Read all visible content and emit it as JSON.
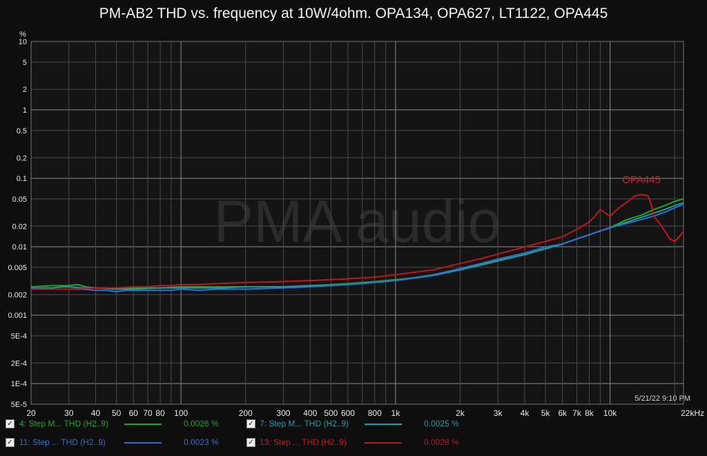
{
  "title": "PM-AB2 THD vs. frequency at 10W/4ohm. OPA134, OPA627, LT1122, OPA445",
  "timestamp": "5/21/22 9:10 PM",
  "watermark": "PMA audio",
  "colors": {
    "background": "#0e0e0e",
    "plot_bg": "#141414",
    "grid": "#4a4a4a",
    "grid_decade": "#8a8a8a",
    "text": "#e8e8e8"
  },
  "legend": [
    {
      "check": "✓",
      "label": "4: Step M... THD (H2..9)",
      "value": "0.0026 %",
      "color": "#1fa51f"
    },
    {
      "check": "✓",
      "label": "7: Step M... THD (H2..9)",
      "value": "0.0025 %",
      "color": "#1a9ea0"
    },
    {
      "check": "✓",
      "label": "11: Step ... THD (H2..9)",
      "value": "0.0023 %",
      "color": "#2f6fd6"
    },
    {
      "check": "✓",
      "label": "13: Step ... THD (H2..9)",
      "value": "0.0028 %",
      "color": "#c41616"
    }
  ],
  "chart_data": {
    "type": "line",
    "title": "PM-AB2 THD vs. frequency at 10W/4ohm. OPA134, OPA627, LT1122, OPA445",
    "xlabel": "",
    "ylabel": "%",
    "x_scale": "log",
    "y_scale": "log",
    "xlim": [
      20,
      22000
    ],
    "ylim": [
      5e-05,
      10
    ],
    "grid": true,
    "x_ticks": [
      {
        "v": 20,
        "l": "20"
      },
      {
        "v": 30,
        "l": "30"
      },
      {
        "v": 40,
        "l": "40"
      },
      {
        "v": 50,
        "l": "50"
      },
      {
        "v": 60,
        "l": "60"
      },
      {
        "v": 70,
        "l": "70"
      },
      {
        "v": 80,
        "l": "80"
      },
      {
        "v": 100,
        "l": "100"
      },
      {
        "v": 200,
        "l": "200"
      },
      {
        "v": 300,
        "l": "300"
      },
      {
        "v": 400,
        "l": "400"
      },
      {
        "v": 500,
        "l": "500"
      },
      {
        "v": 600,
        "l": "600"
      },
      {
        "v": 800,
        "l": "800"
      },
      {
        "v": 1000,
        "l": "1k"
      },
      {
        "v": 2000,
        "l": "2k"
      },
      {
        "v": 3000,
        "l": "3k"
      },
      {
        "v": 4000,
        "l": "4k"
      },
      {
        "v": 5000,
        "l": "5k"
      },
      {
        "v": 6000,
        "l": "6k"
      },
      {
        "v": 7000,
        "l": "7k"
      },
      {
        "v": 8000,
        "l": "8k"
      },
      {
        "v": 10000,
        "l": "10k"
      },
      {
        "v": 22000,
        "l": "22kHz"
      }
    ],
    "y_ticks": [
      {
        "v": 10,
        "l": "10"
      },
      {
        "v": 5,
        "l": "5"
      },
      {
        "v": 2,
        "l": "2"
      },
      {
        "v": 1,
        "l": "1"
      },
      {
        "v": 0.5,
        "l": "0.5"
      },
      {
        "v": 0.2,
        "l": "0.2"
      },
      {
        "v": 0.1,
        "l": "0.1"
      },
      {
        "v": 0.05,
        "l": "0.05"
      },
      {
        "v": 0.02,
        "l": "0.02"
      },
      {
        "v": 0.01,
        "l": "0.01"
      },
      {
        "v": 0.005,
        "l": "0.005"
      },
      {
        "v": 0.002,
        "l": "0.002"
      },
      {
        "v": 0.001,
        "l": "0.001"
      },
      {
        "v": 0.0005,
        "l": "5E-4"
      },
      {
        "v": 0.0002,
        "l": "2E-4"
      },
      {
        "v": 0.0001,
        "l": "1E-4"
      },
      {
        "v": 5e-05,
        "l": "5E-5"
      }
    ],
    "annotations": [
      {
        "text": "OPA445",
        "x": 14000,
        "y": 0.085,
        "color": "#d42020"
      }
    ],
    "series": [
      {
        "name": "4: Step M... THD (H2..9)",
        "color": "#1fa51f",
        "points": [
          [
            20,
            0.0026
          ],
          [
            25,
            0.0027
          ],
          [
            30,
            0.0027
          ],
          [
            33,
            0.0028
          ],
          [
            36,
            0.0026
          ],
          [
            40,
            0.0025
          ],
          [
            45,
            0.0025
          ],
          [
            50,
            0.0024
          ],
          [
            55,
            0.0025
          ],
          [
            60,
            0.0025
          ],
          [
            70,
            0.0025
          ],
          [
            80,
            0.0025
          ],
          [
            100,
            0.0026
          ],
          [
            150,
            0.0026
          ],
          [
            200,
            0.0026
          ],
          [
            300,
            0.0026
          ],
          [
            400,
            0.0027
          ],
          [
            500,
            0.0028
          ],
          [
            600,
            0.0029
          ],
          [
            700,
            0.003
          ],
          [
            800,
            0.0031
          ],
          [
            1000,
            0.0033
          ],
          [
            1200,
            0.0035
          ],
          [
            1500,
            0.0039
          ],
          [
            2000,
            0.0047
          ],
          [
            2500,
            0.0055
          ],
          [
            3000,
            0.0063
          ],
          [
            4000,
            0.0077
          ],
          [
            5000,
            0.0093
          ],
          [
            6000,
            0.011
          ],
          [
            7000,
            0.013
          ],
          [
            8000,
            0.015
          ],
          [
            10000,
            0.019
          ],
          [
            11000,
            0.022
          ],
          [
            12000,
            0.025
          ],
          [
            14000,
            0.029
          ],
          [
            16000,
            0.035
          ],
          [
            18000,
            0.04
          ],
          [
            20000,
            0.046
          ],
          [
            22000,
            0.05
          ]
        ]
      },
      {
        "name": "7: Step M... THD (H2..9)",
        "color": "#1a9ea0",
        "points": [
          [
            20,
            0.0025
          ],
          [
            25,
            0.0025
          ],
          [
            28,
            0.0026
          ],
          [
            30,
            0.0026
          ],
          [
            35,
            0.0025
          ],
          [
            40,
            0.0025
          ],
          [
            50,
            0.0024
          ],
          [
            60,
            0.0024
          ],
          [
            80,
            0.0025
          ],
          [
            100,
            0.0025
          ],
          [
            150,
            0.0025
          ],
          [
            200,
            0.0026
          ],
          [
            300,
            0.0026
          ],
          [
            400,
            0.0027
          ],
          [
            500,
            0.0027
          ],
          [
            600,
            0.0028
          ],
          [
            800,
            0.003
          ],
          [
            1000,
            0.0032
          ],
          [
            1500,
            0.0038
          ],
          [
            2000,
            0.0046
          ],
          [
            2500,
            0.0054
          ],
          [
            3000,
            0.0062
          ],
          [
            4000,
            0.0077
          ],
          [
            5000,
            0.0094
          ],
          [
            6000,
            0.011
          ],
          [
            7000,
            0.013
          ],
          [
            8000,
            0.015
          ],
          [
            10000,
            0.019
          ],
          [
            12000,
            0.023
          ],
          [
            14000,
            0.027
          ],
          [
            16000,
            0.031
          ],
          [
            18000,
            0.035
          ],
          [
            20000,
            0.04
          ],
          [
            22000,
            0.044
          ]
        ]
      },
      {
        "name": "11: Step ... THD (H2..9)",
        "color": "#2f6fd6",
        "points": [
          [
            20,
            0.0025
          ],
          [
            25,
            0.0024
          ],
          [
            30,
            0.0024
          ],
          [
            35,
            0.0024
          ],
          [
            40,
            0.0023
          ],
          [
            45,
            0.0023
          ],
          [
            50,
            0.0022
          ],
          [
            55,
            0.0023
          ],
          [
            60,
            0.0023
          ],
          [
            70,
            0.0023
          ],
          [
            80,
            0.0023
          ],
          [
            90,
            0.0023
          ],
          [
            100,
            0.0024
          ],
          [
            120,
            0.0023
          ],
          [
            150,
            0.0024
          ],
          [
            200,
            0.0024
          ],
          [
            300,
            0.0025
          ],
          [
            400,
            0.0026
          ],
          [
            500,
            0.0027
          ],
          [
            600,
            0.0028
          ],
          [
            800,
            0.003
          ],
          [
            1000,
            0.0032
          ],
          [
            1500,
            0.0039
          ],
          [
            2000,
            0.0048
          ],
          [
            2500,
            0.0057
          ],
          [
            3000,
            0.0066
          ],
          [
            4000,
            0.0081
          ],
          [
            5000,
            0.0099
          ],
          [
            6000,
            0.011
          ],
          [
            7000,
            0.013
          ],
          [
            8000,
            0.015
          ],
          [
            10000,
            0.019
          ],
          [
            12000,
            0.022
          ],
          [
            14000,
            0.025
          ],
          [
            16000,
            0.028
          ],
          [
            18000,
            0.032
          ],
          [
            20000,
            0.037
          ],
          [
            22000,
            0.042
          ]
        ]
      },
      {
        "name": "13: Step ... THD (H2..9)",
        "color": "#c41616",
        "points": [
          [
            20,
            0.0024
          ],
          [
            25,
            0.0024
          ],
          [
            30,
            0.0024
          ],
          [
            40,
            0.0025
          ],
          [
            50,
            0.0025
          ],
          [
            60,
            0.0026
          ],
          [
            70,
            0.0026
          ],
          [
            80,
            0.0027
          ],
          [
            90,
            0.0027
          ],
          [
            100,
            0.0028
          ],
          [
            120,
            0.0028
          ],
          [
            150,
            0.0029
          ],
          [
            200,
            0.003
          ],
          [
            300,
            0.0031
          ],
          [
            400,
            0.0032
          ],
          [
            500,
            0.0033
          ],
          [
            600,
            0.0034
          ],
          [
            800,
            0.0036
          ],
          [
            1000,
            0.0039
          ],
          [
            1500,
            0.0046
          ],
          [
            2000,
            0.0057
          ],
          [
            2500,
            0.0067
          ],
          [
            3000,
            0.0078
          ],
          [
            4000,
            0.0099
          ],
          [
            5000,
            0.012
          ],
          [
            6000,
            0.014
          ],
          [
            7000,
            0.018
          ],
          [
            8000,
            0.023
          ],
          [
            8500,
            0.028
          ],
          [
            9000,
            0.035
          ],
          [
            9500,
            0.031
          ],
          [
            10000,
            0.028
          ],
          [
            11000,
            0.037
          ],
          [
            12000,
            0.045
          ],
          [
            13000,
            0.055
          ],
          [
            14000,
            0.058
          ],
          [
            15000,
            0.056
          ],
          [
            15500,
            0.043
          ],
          [
            16000,
            0.028
          ],
          [
            17000,
            0.022
          ],
          [
            18000,
            0.017
          ],
          [
            19000,
            0.013
          ],
          [
            20000,
            0.012
          ],
          [
            21000,
            0.014
          ],
          [
            22000,
            0.017
          ]
        ]
      }
    ]
  }
}
